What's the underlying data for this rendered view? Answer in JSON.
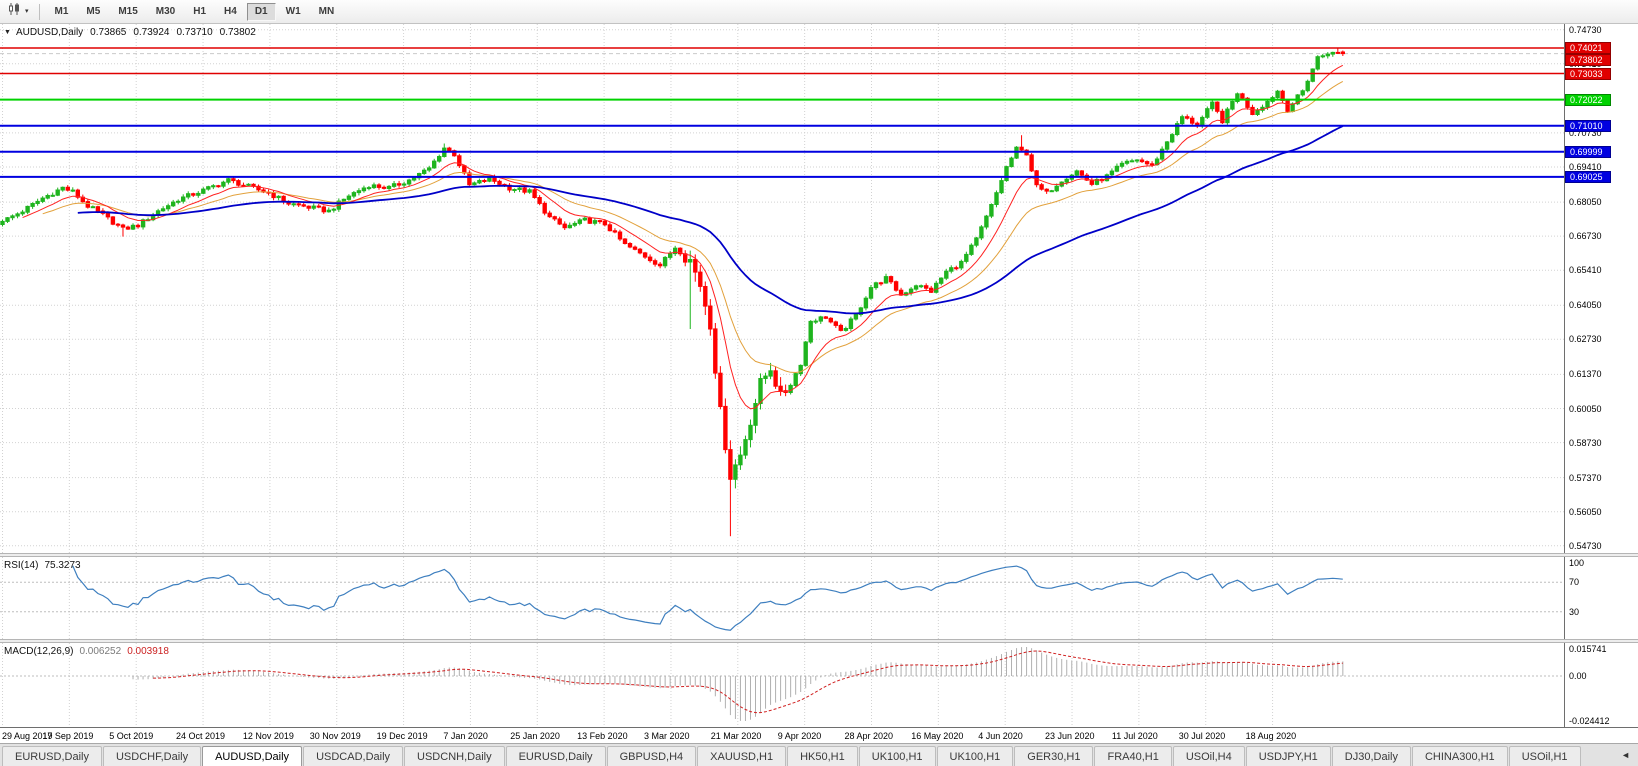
{
  "icons": {
    "collapse": "▼",
    "caret": "▾",
    "tab_scroll": "◄"
  },
  "toolbar": {
    "chart_type_icon": "candlestick-chart-icon",
    "periods": [
      "M1",
      "M5",
      "M15",
      "M30",
      "H1",
      "H4",
      "D1",
      "W1",
      "MN"
    ],
    "selected_period": "D1"
  },
  "chart": {
    "title": "AUDUSD,Daily",
    "ohlc": {
      "open": "0.73865",
      "high": "0.73924",
      "low": "0.73710",
      "close": "0.73802"
    }
  },
  "colors": {
    "up": "#1fb41f",
    "down": "#ff0000",
    "ma_fast": "#ff2222",
    "ma_mid": "#e2a13c",
    "ma_slow": "#0000c8",
    "rsi_line": "#3e7fbf",
    "macd_hist": "#b0b0b0",
    "macd_signal": "#d02020",
    "bid_tag": "#e00000"
  },
  "hlines": [
    {
      "price": 0.74021,
      "label": "0.74021",
      "color": "#e00000",
      "width": 1.4
    },
    {
      "price": 0.73033,
      "label": "0.73033",
      "color": "#e00000",
      "width": 1.4
    },
    {
      "price": 0.72022,
      "label": "0.72022",
      "color": "#00d200",
      "width": 2
    },
    {
      "price": 0.7101,
      "label": "0.71010",
      "color": "#0000e0",
      "width": 2
    },
    {
      "price": 0.69999,
      "label": "0.69999",
      "color": "#0000e0",
      "width": 2
    },
    {
      "price": 0.69025,
      "label": "0.69025",
      "color": "#0000e0",
      "width": 2
    }
  ],
  "bid": {
    "price": 0.73802,
    "label": "0.73802"
  },
  "price_axis": [
    "0.74730",
    "0.73410",
    "0.70730",
    "0.69410",
    "0.68050",
    "0.66730",
    "0.65410",
    "0.64050",
    "0.62730",
    "0.61370",
    "0.60050",
    "0.58730",
    "0.57370",
    "0.56050",
    "0.54730"
  ],
  "chart_data": {
    "type": "candlestick",
    "symbol": "AUDUSD",
    "timeframe": "Daily",
    "visible_range": {
      "price_top": 0.7495,
      "price_bottom": 0.5445
    },
    "num_bars": 268,
    "close_anchors": [
      [
        0,
        0.673
      ],
      [
        4,
        0.677
      ],
      [
        8,
        0.682
      ],
      [
        12,
        0.686
      ],
      [
        14,
        0.6845
      ],
      [
        17,
        0.679
      ],
      [
        20,
        0.6755
      ],
      [
        24,
        0.67
      ],
      [
        27,
        0.6715
      ],
      [
        31,
        0.677
      ],
      [
        35,
        0.6815
      ],
      [
        40,
        0.685
      ],
      [
        45,
        0.689
      ],
      [
        49,
        0.6865
      ],
      [
        53,
        0.684
      ],
      [
        57,
        0.68
      ],
      [
        61,
        0.6785
      ],
      [
        65,
        0.677
      ],
      [
        69,
        0.683
      ],
      [
        73,
        0.687
      ],
      [
        77,
        0.686
      ],
      [
        81,
        0.689
      ],
      [
        85,
        0.6935
      ],
      [
        88,
        0.7015
      ],
      [
        90,
        0.699
      ],
      [
        93,
        0.687
      ],
      [
        97,
        0.6895
      ],
      [
        101,
        0.686
      ],
      [
        105,
        0.6845
      ],
      [
        109,
        0.6745
      ],
      [
        112,
        0.6705
      ],
      [
        116,
        0.6735
      ],
      [
        120,
        0.672
      ],
      [
        124,
        0.664
      ],
      [
        128,
        0.6595
      ],
      [
        131,
        0.656
      ],
      [
        134,
        0.663
      ],
      [
        137,
        0.658
      ],
      [
        139,
        0.6485
      ],
      [
        141,
        0.6335
      ],
      [
        143,
        0.599
      ],
      [
        145,
        0.5745
      ],
      [
        147,
        0.5825
      ],
      [
        149,
        0.596
      ],
      [
        151,
        0.61
      ],
      [
        153,
        0.6165
      ],
      [
        155,
        0.605
      ],
      [
        157,
        0.61
      ],
      [
        159,
        0.618
      ],
      [
        161,
        0.6345
      ],
      [
        164,
        0.636
      ],
      [
        167,
        0.63
      ],
      [
        170,
        0.6365
      ],
      [
        173,
        0.6475
      ],
      [
        176,
        0.651
      ],
      [
        179,
        0.6445
      ],
      [
        182,
        0.6485
      ],
      [
        185,
        0.646
      ],
      [
        188,
        0.6535
      ],
      [
        191,
        0.657
      ],
      [
        194,
        0.666
      ],
      [
        197,
        0.679
      ],
      [
        200,
        0.694
      ],
      [
        202,
        0.701
      ],
      [
        204,
        0.6995
      ],
      [
        206,
        0.6865
      ],
      [
        208,
        0.684
      ],
      [
        211,
        0.689
      ],
      [
        214,
        0.6925
      ],
      [
        217,
        0.6875
      ],
      [
        220,
        0.6905
      ],
      [
        223,
        0.695
      ],
      [
        226,
        0.697
      ],
      [
        229,
        0.6945
      ],
      [
        232,
        0.704
      ],
      [
        235,
        0.7135
      ],
      [
        238,
        0.7105
      ],
      [
        241,
        0.7185
      ],
      [
        243,
        0.712
      ],
      [
        246,
        0.723
      ],
      [
        249,
        0.715
      ],
      [
        252,
        0.7195
      ],
      [
        254,
        0.7235
      ],
      [
        256,
        0.7165
      ],
      [
        259,
        0.7235
      ],
      [
        262,
        0.7365
      ],
      [
        265,
        0.7385
      ],
      [
        267,
        0.73802
      ]
    ],
    "wick_lows": {
      "24": 0.6671,
      "137": 0.6313,
      "145": 0.551
    },
    "wick_highs": {
      "88": 0.7032,
      "203": 0.7064,
      "266": 0.74021
    },
    "last_bar": {
      "open": 0.73865,
      "high": 0.73924,
      "low": 0.7371,
      "close": 0.73802
    },
    "x_labels": [
      "29 Aug 2019",
      "17 Sep 2019",
      "5 Oct 2019",
      "24 Oct 2019",
      "12 Nov 2019",
      "30 Nov 2019",
      "19 Dec 2019",
      "7 Jan 2020",
      "25 Jan 2020",
      "13 Feb 2020",
      "3 Mar 2020",
      "21 Mar 2020",
      "9 Apr 2020",
      "28 Apr 2020",
      "16 May 2020",
      "4 Jun 2020",
      "23 Jun 2020",
      "11 Jul 2020",
      "30 Jul 2020",
      "18 Aug 2020"
    ],
    "overlays": [
      {
        "name": "moving-average-fast",
        "color": "#ff2222"
      },
      {
        "name": "moving-average-medium",
        "color": "#e2a13c"
      },
      {
        "name": "moving-average-slow",
        "color": "#0000c8"
      }
    ]
  },
  "rsi": {
    "label": "RSI(14)",
    "value": "75.3273",
    "levels": [
      70,
      30
    ],
    "axis": [
      "100",
      "70",
      "30"
    ]
  },
  "macd": {
    "label": "MACD(12,26,9)",
    "value_main": "0.006252",
    "value_signal": "0.003918",
    "axis": [
      "0.015741",
      "0.00",
      "-0.024412"
    ]
  },
  "tabs": {
    "active_index": 2,
    "items": [
      "EURUSD,Daily",
      "USDCHF,Daily",
      "AUDUSD,Daily",
      "USDCAD,Daily",
      "USDCNH,Daily",
      "EURUSD,Daily",
      "GBPUSD,H4",
      "XAUUSD,H1",
      "HK50,H1",
      "UK100,H1",
      "UK100,H1",
      "GER30,H1",
      "FRA40,H1",
      "USOil,H4",
      "USDJPY,H1",
      "DJ30,Daily",
      "CHINA300,H1",
      "USOil,H1"
    ]
  }
}
